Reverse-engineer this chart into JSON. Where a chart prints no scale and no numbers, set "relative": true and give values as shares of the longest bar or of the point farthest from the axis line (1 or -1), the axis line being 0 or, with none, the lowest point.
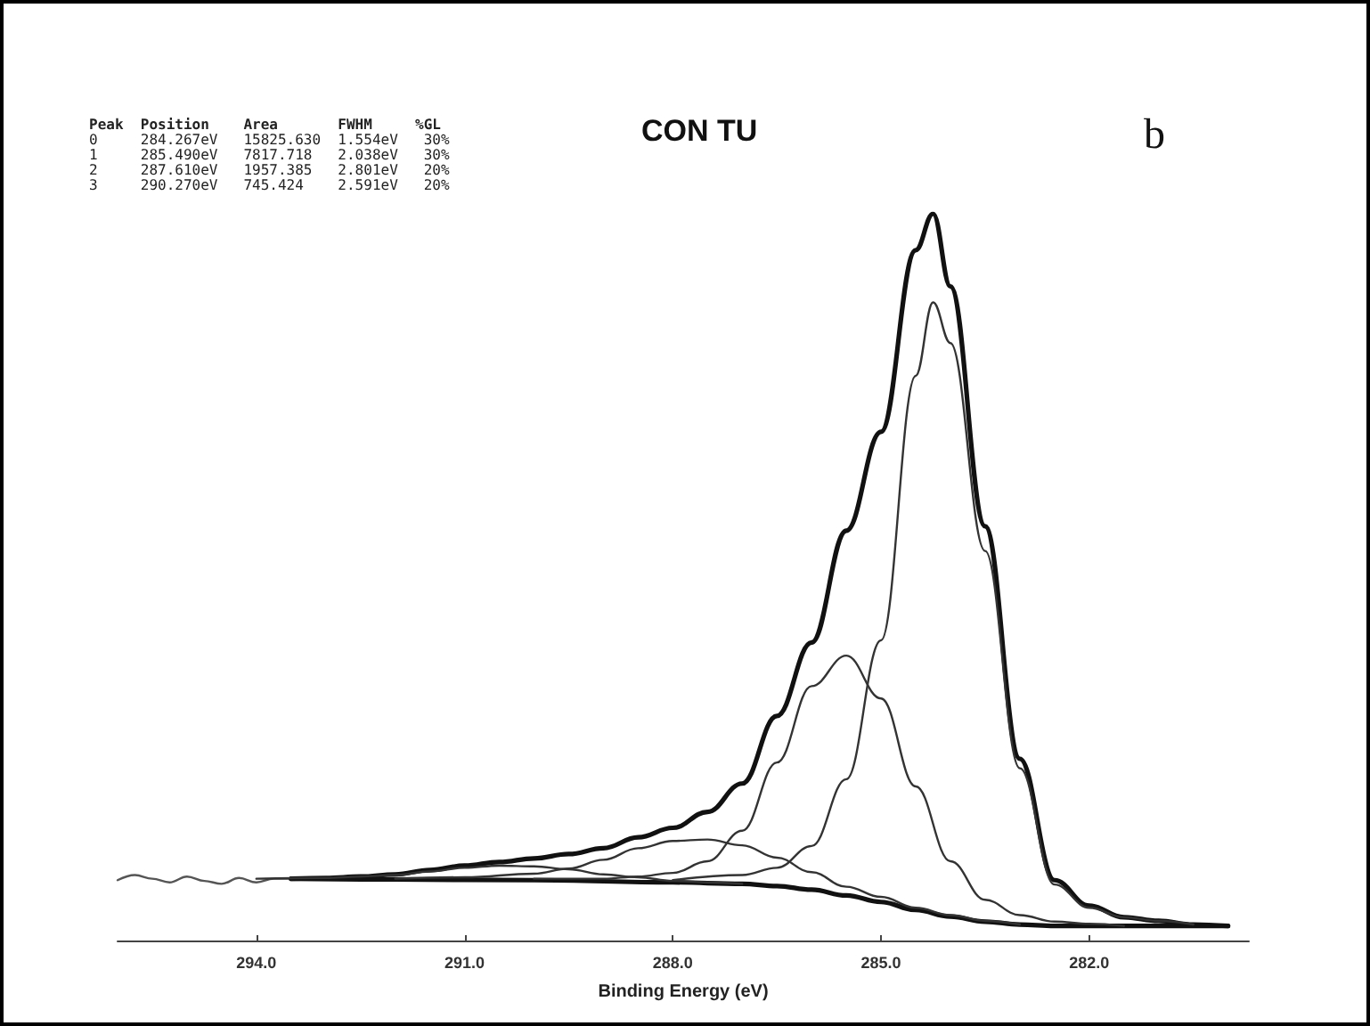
{
  "chart_data": {
    "type": "line",
    "title": "CON TU",
    "xlabel": "Binding Energy (eV)",
    "annotations": [
      "Peak  Position    Area       FWHM     %GL",
      "0     284.267eV   15825.630  1.554eV   30%",
      "1     285.490eV   7817.718   2.038eV   30%",
      "2     287.610eV   1957.385   2.801eV   20%",
      "3     290.270eV   745.424    2.591eV   20%",
      "b"
    ],
    "relative": true,
    "xlim": [
      296,
      279.7
    ],
    "xticks": [
      {
        "value": 294,
        "label": "294.0"
      },
      {
        "value": 291,
        "label": "291.0"
      },
      {
        "value": 288,
        "label": "288.0"
      },
      {
        "value": 285,
        "label": "285.0"
      },
      {
        "value": 282,
        "label": "282.0"
      }
    ],
    "grid": false,
    "marker": "none",
    "line_style": "solid",
    "series": [
      {
        "color": "#555555",
        "x": [
          296,
          295.75,
          295.5,
          295.25,
          295,
          294.75,
          294.5,
          294.25,
          294,
          293.75,
          293.5
        ],
        "values": [
          0.083,
          0.09,
          0.085,
          0.08,
          0.088,
          0.082,
          0.078,
          0.086,
          0.08,
          0.085,
          0.085
        ]
      },
      {
        "color": "#111111",
        "x": [
          293.5,
          293,
          292.5,
          292,
          291.5,
          291,
          290.5,
          290,
          289.5,
          289,
          288.5,
          288,
          287.5,
          287,
          286.5,
          286,
          285.5,
          285,
          284.5,
          284.25,
          284,
          283.5,
          283,
          282.5,
          282,
          281.5,
          281,
          280.5,
          280
        ],
        "values": [
          0.085,
          0.086,
          0.088,
          0.091,
          0.097,
          0.103,
          0.108,
          0.113,
          0.119,
          0.127,
          0.142,
          0.155,
          0.177,
          0.216,
          0.309,
          0.41,
          0.564,
          0.7,
          0.95,
          1.0,
          0.9,
          0.57,
          0.25,
          0.083,
          0.048,
          0.032,
          0.027,
          0.022,
          0.02
        ]
      },
      {
        "color": "#111111",
        "x": [
          293.5,
          292,
          290,
          288,
          287,
          286.5,
          286,
          285.5,
          285,
          284.5,
          284,
          283.5,
          283,
          282.5,
          282,
          281,
          280
        ],
        "values": [
          0.085,
          0.084,
          0.083,
          0.08,
          0.078,
          0.075,
          0.07,
          0.062,
          0.053,
          0.042,
          0.033,
          0.026,
          0.022,
          0.02,
          0.02,
          0.02,
          0.02
        ]
      },
      {
        "color": "#333333",
        "x": [
          288,
          287,
          286.5,
          286,
          285.5,
          285,
          284.5,
          284.25,
          284,
          283.5,
          283,
          282.5,
          282,
          281.5,
          281,
          280.5
        ],
        "values": [
          0.083,
          0.09,
          0.1,
          0.13,
          0.222,
          0.413,
          0.777,
          0.878,
          0.822,
          0.536,
          0.237,
          0.077,
          0.045,
          0.032,
          0.027,
          0.022
        ]
      },
      {
        "color": "#333333",
        "x": [
          290,
          289,
          288.5,
          288,
          287.5,
          287,
          286.5,
          286,
          285.5,
          285,
          284.5,
          284,
          283.5,
          283,
          282.5,
          282,
          281.5
        ],
        "values": [
          0.085,
          0.085,
          0.088,
          0.093,
          0.109,
          0.151,
          0.245,
          0.35,
          0.392,
          0.333,
          0.212,
          0.109,
          0.056,
          0.035,
          0.026,
          0.023,
          0.02
        ]
      },
      {
        "color": "#333333",
        "x": [
          292,
          291,
          290,
          289.5,
          289,
          288.5,
          288,
          287.5,
          287,
          286.5,
          286,
          285.5,
          285,
          284.5,
          284,
          283.5,
          283
        ],
        "values": [
          0.085,
          0.087,
          0.092,
          0.099,
          0.111,
          0.127,
          0.137,
          0.139,
          0.131,
          0.114,
          0.094,
          0.074,
          0.06,
          0.045,
          0.035,
          0.027,
          0.022
        ]
      },
      {
        "color": "#333333",
        "x": [
          294,
          293,
          292.5,
          292,
          291.5,
          291,
          290.5,
          290,
          289.5,
          289,
          288.5,
          288,
          287.5,
          287
        ],
        "values": [
          0.085,
          0.086,
          0.088,
          0.09,
          0.095,
          0.1,
          0.103,
          0.102,
          0.098,
          0.091,
          0.087,
          0.082,
          0.08,
          0.078
        ]
      }
    ]
  }
}
